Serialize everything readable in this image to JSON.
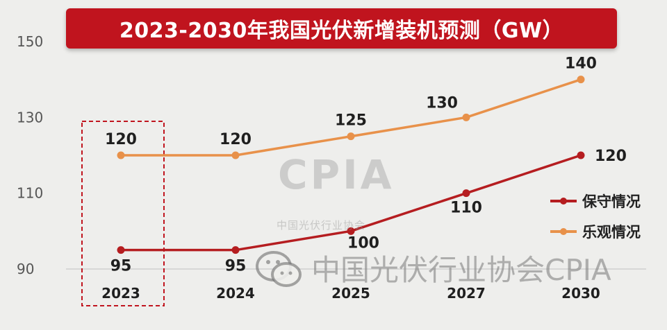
{
  "title": "2023-2030年我国光伏新增装机预测（GW）",
  "watermark": {
    "logo": "CPIA",
    "org": "中国光伏行业协会",
    "account": "中国光伏行业协会CPIA"
  },
  "colors": {
    "conservative": "#b51d20",
    "optimistic": "#e8914a",
    "banner": "#c0141e",
    "highlight_box": "#c0141e",
    "gridline": "#cfcfcf",
    "axis_text": "#555555"
  },
  "chart_data": {
    "type": "line",
    "title": "2023-2030年我国光伏新增装机预测（GW）",
    "categories": [
      "2023",
      "2024",
      "2025",
      "2027",
      "2030"
    ],
    "series": [
      {
        "name": "保守情况",
        "values": [
          95,
          95,
          100,
          110,
          120
        ]
      },
      {
        "name": "乐观情况",
        "values": [
          120,
          120,
          125,
          130,
          140
        ]
      }
    ],
    "y_ticks": [
      90,
      110,
      130,
      150
    ],
    "ylim": [
      90,
      150
    ],
    "grid": false,
    "legend": "right",
    "highlight": "2023",
    "value_labels": {
      "conservative": [
        "95",
        "95",
        "100",
        "110",
        "120"
      ],
      "optimistic": [
        "120",
        "120",
        "125",
        "130",
        "140"
      ]
    }
  }
}
